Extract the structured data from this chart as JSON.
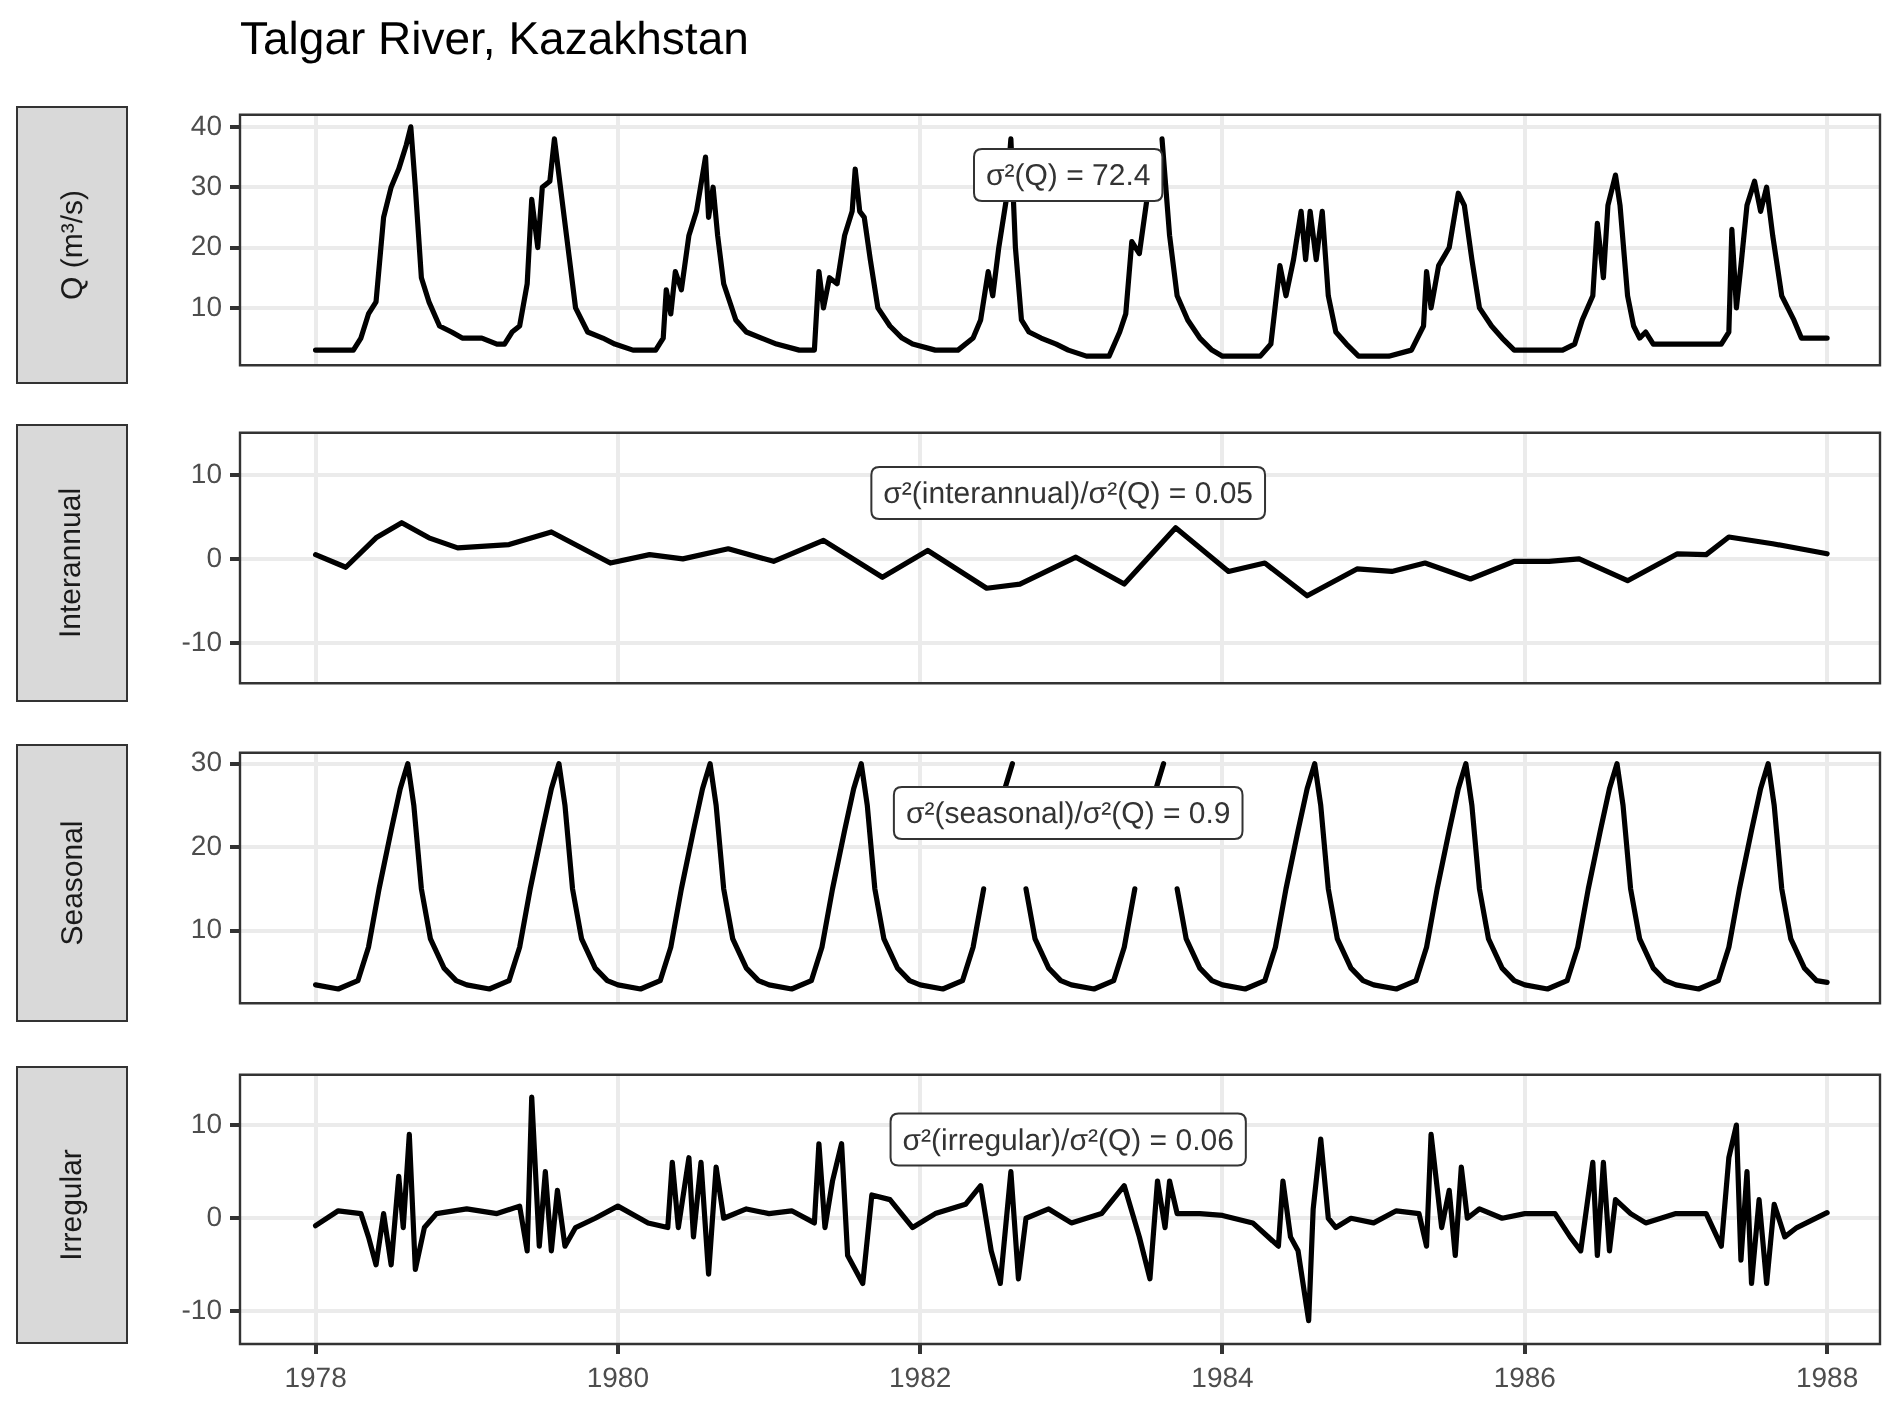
{
  "chart_data": [
    {
      "type": "line",
      "title": "Talgar River, Kazakhstan",
      "ylabel": "Q (m³/s)",
      "color": "#000000",
      "legend": false,
      "grid": true,
      "tick_labels": "y",
      "xlim": [
        1977.5,
        1988.35
      ],
      "xticks": [
        1978,
        1980,
        1982,
        1984,
        1986,
        1988
      ],
      "ylim": [
        0.5,
        42
      ],
      "yticks": [
        10,
        20,
        30,
        40
      ],
      "annotations": [
        "σ²(Q) = 72.4"
      ],
      "x": [
        1978.0,
        1978.25,
        1978.3,
        1978.35,
        1978.4,
        1978.45,
        1978.5,
        1978.55,
        1978.6,
        1978.63,
        1978.66,
        1978.7,
        1978.75,
        1978.82,
        1978.9,
        1978.97,
        1979.1,
        1979.2,
        1979.25,
        1979.3,
        1979.35,
        1979.4,
        1979.43,
        1979.47,
        1979.5,
        1979.55,
        1979.58,
        1979.62,
        1979.67,
        1979.72,
        1979.8,
        1979.9,
        1979.98,
        1980.1,
        1980.25,
        1980.3,
        1980.32,
        1980.35,
        1980.38,
        1980.42,
        1980.47,
        1980.52,
        1980.58,
        1980.6,
        1980.63,
        1980.66,
        1980.7,
        1980.78,
        1980.85,
        1980.95,
        1981.05,
        1981.2,
        1981.3,
        1981.33,
        1981.36,
        1981.4,
        1981.45,
        1981.5,
        1981.55,
        1981.57,
        1981.6,
        1981.63,
        1981.67,
        1981.72,
        1981.8,
        1981.88,
        1981.95,
        1982.1,
        1982.25,
        1982.35,
        1982.4,
        1982.45,
        1982.48,
        1982.52,
        1982.57,
        1982.6,
        1982.63,
        1982.67,
        1982.72,
        1982.8,
        1982.9,
        1982.98,
        1983.1,
        1983.25,
        1983.32,
        1983.36,
        1983.4,
        1983.45,
        1983.5,
        1983.55,
        1983.6,
        1983.65,
        1983.7,
        1983.77,
        1983.85,
        1983.93,
        1984.0,
        1984.25,
        1984.32,
        1984.38,
        1984.42,
        1984.47,
        1984.52,
        1984.55,
        1984.58,
        1984.62,
        1984.66,
        1984.7,
        1984.75,
        1984.82,
        1984.9,
        1984.98,
        1985.1,
        1985.25,
        1985.33,
        1985.35,
        1985.38,
        1985.43,
        1985.5,
        1985.56,
        1985.6,
        1985.65,
        1985.7,
        1985.78,
        1985.85,
        1985.93,
        1986.05,
        1986.25,
        1986.33,
        1986.38,
        1986.45,
        1986.48,
        1986.52,
        1986.55,
        1986.6,
        1986.63,
        1986.68,
        1986.72,
        1986.76,
        1986.8,
        1986.85,
        1986.95,
        1987.1,
        1987.3,
        1987.35,
        1987.37,
        1987.4,
        1987.43,
        1987.47,
        1987.52,
        1987.56,
        1987.6,
        1987.64,
        1987.7,
        1987.78,
        1987.83,
        1987.9,
        1988.0
      ],
      "values": [
        3,
        3,
        5,
        9,
        11,
        25,
        30,
        33,
        37,
        40,
        30,
        15,
        11,
        7,
        6,
        5,
        5,
        4,
        4,
        6,
        7,
        14,
        28,
        20,
        30,
        31,
        38,
        30,
        20,
        10,
        6,
        5,
        4,
        3,
        3,
        5,
        13,
        9,
        16,
        13,
        22,
        26,
        35,
        25,
        30,
        22,
        14,
        8,
        6,
        5,
        4,
        3,
        3,
        16,
        10,
        15,
        14,
        22,
        26,
        33,
        26,
        25,
        18,
        10,
        7,
        5,
        4,
        3,
        3,
        5,
        8,
        16,
        12,
        20,
        28,
        38,
        20,
        8,
        6,
        5,
        4,
        3,
        2,
        2,
        6,
        9,
        21,
        19,
        28,
        null,
        38,
        22,
        12,
        8,
        5,
        3,
        2,
        2,
        4,
        17,
        12,
        18,
        26,
        18,
        26,
        18,
        26,
        12,
        6,
        4,
        2,
        2,
        2,
        3,
        7,
        16,
        10,
        17,
        20,
        29,
        27,
        18,
        10,
        7,
        5,
        3,
        3,
        3,
        4,
        8,
        12,
        24,
        15,
        27,
        32,
        27,
        12,
        7,
        5,
        6,
        4,
        4,
        4,
        4,
        6,
        23,
        10,
        17,
        27,
        31,
        26,
        30,
        22,
        12,
        8,
        5,
        5,
        5
      ]
    },
    {
      "type": "line",
      "ylabel": "Interannual",
      "color": "#000000",
      "legend": false,
      "grid": true,
      "tick_labels": "y",
      "xlim": [
        1977.5,
        1988.35
      ],
      "xticks": [
        1978,
        1980,
        1982,
        1984,
        1986,
        1988
      ],
      "ylim": [
        -14.8,
        15
      ],
      "yticks": [
        -10,
        0,
        10
      ],
      "annotations": [
        "σ²(interannual)/σ²(Q) = 0.05"
      ],
      "x": [
        1978.0,
        1978.2,
        1978.4,
        1978.57,
        1978.75,
        1978.94,
        1979.28,
        1979.56,
        1979.95,
        1980.21,
        1980.43,
        1980.73,
        1981.03,
        1981.36,
        1981.75,
        1982.05,
        1982.44,
        1982.66,
        1983.03,
        1983.35,
        1983.69,
        1984.04,
        1984.28,
        1984.56,
        1984.89,
        1985.12,
        1985.34,
        1985.64,
        1985.93,
        1986.16,
        1986.36,
        1986.68,
        1987.01,
        1987.2,
        1987.35,
        1987.64,
        1988.0
      ],
      "values": [
        0.5,
        -1,
        2.5,
        4.3,
        2.5,
        1.3,
        1.7,
        3.2,
        -0.5,
        0.5,
        0,
        1.2,
        -0.3,
        2.2,
        -2.2,
        1,
        -3.5,
        -3,
        0.2,
        -3,
        3.7,
        -1.5,
        -0.5,
        -4.4,
        -1.2,
        -1.5,
        -0.5,
        -2.4,
        -0.3,
        -0.3,
        0,
        -2.6,
        0.6,
        0.5,
        2.6,
        1.8,
        0.6
      ]
    },
    {
      "type": "line",
      "ylabel": "Seasonal",
      "color": "#000000",
      "legend": false,
      "grid": true,
      "tick_labels": "y",
      "xlim": [
        1977.5,
        1988.35
      ],
      "xticks": [
        1978,
        1980,
        1982,
        1984,
        1986,
        1988
      ],
      "ylim": [
        1.3,
        31.3
      ],
      "yticks": [
        10,
        20,
        30
      ],
      "annotations": [
        "σ²(seasonal)/σ²(Q) = 0.9"
      ],
      "x": [
        1978.0,
        1978.15,
        1978.28,
        1978.35,
        1978.42,
        1978.5,
        1978.56,
        1978.61,
        1978.65,
        1978.7,
        1978.76,
        1978.85,
        1978.93,
        1979.0,
        1979.15,
        1979.28,
        1979.35,
        1979.42,
        1979.5,
        1979.56,
        1979.61,
        1979.65,
        1979.7,
        1979.76,
        1979.85,
        1979.93,
        1980.0,
        1980.15,
        1980.28,
        1980.35,
        1980.42,
        1980.5,
        1980.56,
        1980.61,
        1980.65,
        1980.7,
        1980.76,
        1980.85,
        1980.93,
        1981.0,
        1981.15,
        1981.28,
        1981.35,
        1981.42,
        1981.5,
        1981.56,
        1981.61,
        1981.65,
        1981.7,
        1981.76,
        1981.85,
        1981.93,
        1982.0,
        1982.15,
        1982.28,
        1982.35,
        1982.42,
        1982.5,
        1982.56,
        1982.61,
        1982.65,
        1982.7,
        1982.76,
        1982.85,
        1982.93,
        1983.0,
        1983.15,
        1983.28,
        1983.35,
        1983.42,
        1983.5,
        1983.56,
        1983.61,
        1983.65,
        1983.7,
        1983.76,
        1983.85,
        1983.93,
        1984.0,
        1984.15,
        1984.28,
        1984.35,
        1984.42,
        1984.5,
        1984.56,
        1984.61,
        1984.65,
        1984.7,
        1984.76,
        1984.85,
        1984.93,
        1985.0,
        1985.15,
        1985.28,
        1985.35,
        1985.42,
        1985.5,
        1985.56,
        1985.61,
        1985.65,
        1985.7,
        1985.76,
        1985.85,
        1985.93,
        1986.0,
        1986.15,
        1986.28,
        1986.35,
        1986.42,
        1986.5,
        1986.56,
        1986.61,
        1986.65,
        1986.7,
        1986.76,
        1986.85,
        1986.93,
        1987.0,
        1987.15,
        1987.28,
        1987.35,
        1987.42,
        1987.5,
        1987.56,
        1987.61,
        1987.65,
        1987.7,
        1987.76,
        1987.85,
        1987.93,
        1988.0
      ],
      "values": [
        3.5,
        3,
        4,
        8,
        15,
        22,
        27,
        30,
        25,
        15,
        9,
        5.5,
        4,
        3.5,
        3,
        4,
        8,
        15,
        22,
        27,
        30,
        25,
        15,
        9,
        5.5,
        4,
        3.5,
        3,
        4,
        8,
        15,
        22,
        27,
        30,
        25,
        15,
        9,
        5.5,
        4,
        3.5,
        3,
        4,
        8,
        15,
        22,
        27,
        30,
        25,
        15,
        9,
        5.5,
        4,
        3.5,
        3,
        4,
        8,
        15,
        null,
        27,
        30,
        null,
        15,
        9,
        5.5,
        4,
        3.5,
        3,
        4,
        8,
        15,
        null,
        27,
        30,
        null,
        15,
        9,
        5.5,
        4,
        3.5,
        3,
        4,
        8,
        15,
        22,
        27,
        30,
        25,
        15,
        9,
        5.5,
        4,
        3.5,
        3,
        4,
        8,
        15,
        22,
        27,
        30,
        25,
        15,
        9,
        5.5,
        4,
        3.5,
        3,
        4,
        8,
        15,
        22,
        27,
        30,
        25,
        15,
        9,
        5.5,
        4,
        3.5,
        3,
        4,
        8,
        15,
        22,
        27,
        30,
        25,
        15,
        9,
        5.5,
        4,
        3.8
      ]
    },
    {
      "type": "line",
      "ylabel": "Irregular",
      "color": "#000000",
      "legend": false,
      "grid": true,
      "xlim": [
        1977.5,
        1988.35
      ],
      "xticks": [
        1978,
        1980,
        1982,
        1984,
        1986,
        1988
      ],
      "ylim": [
        -13.5,
        15.4
      ],
      "yticks": [
        -10,
        0,
        10
      ],
      "annotations": [
        "σ²(irregular)/σ²(Q) = 0.06"
      ],
      "x": [
        1978.0,
        1978.15,
        1978.3,
        1978.35,
        1978.4,
        1978.45,
        1978.5,
        1978.55,
        1978.58,
        1978.62,
        1978.66,
        1978.72,
        1978.8,
        1979.0,
        1979.2,
        1979.35,
        1979.4,
        1979.43,
        1979.48,
        1979.52,
        1979.56,
        1979.6,
        1979.65,
        1979.72,
        1979.85,
        1980.0,
        1980.2,
        1980.33,
        1980.36,
        1980.4,
        1980.47,
        1980.5,
        1980.55,
        1980.6,
        1980.65,
        1980.7,
        1980.85,
        1981.0,
        1981.15,
        1981.3,
        1981.33,
        1981.37,
        1981.42,
        1981.48,
        1981.52,
        1981.62,
        1981.68,
        1981.8,
        1981.95,
        1982.1,
        1982.3,
        1982.4,
        1982.47,
        1982.53,
        1982.6,
        1982.65,
        1982.7,
        1982.85,
        1983.0,
        1983.2,
        1983.35,
        1983.45,
        1983.52,
        1983.57,
        1983.62,
        1983.65,
        1983.7,
        1983.85,
        1984.0,
        1984.2,
        1984.37,
        1984.4,
        1984.45,
        1984.5,
        1984.57,
        1984.6,
        1984.65,
        1984.7,
        1984.75,
        1984.85,
        1985.0,
        1985.15,
        1985.3,
        1985.35,
        1985.38,
        1985.45,
        1985.5,
        1985.54,
        1985.58,
        1985.62,
        1985.7,
        1985.85,
        1986.0,
        1986.2,
        1986.3,
        1986.37,
        1986.45,
        1986.48,
        1986.52,
        1986.56,
        1986.6,
        1986.7,
        1986.8,
        1987.0,
        1987.2,
        1987.3,
        1987.35,
        1987.4,
        1987.43,
        1987.47,
        1987.5,
        1987.55,
        1987.6,
        1987.65,
        1987.72,
        1987.8,
        1988.0
      ],
      "values": [
        -0.8,
        0.8,
        0.5,
        -2,
        -5,
        0.5,
        -5,
        4.5,
        -1,
        9,
        -5.5,
        -1,
        0.5,
        1,
        0.5,
        1.3,
        -3.5,
        13,
        -3,
        5,
        -3.5,
        3,
        -3,
        -1,
        0,
        1.3,
        -0.5,
        -1,
        6,
        -1,
        6.5,
        -2,
        6,
        -6,
        5.5,
        0,
        1,
        0.5,
        0.8,
        -0.5,
        8,
        -1,
        4,
        8,
        -4,
        -7,
        2.5,
        2,
        -1,
        0.5,
        1.5,
        3.5,
        -3.5,
        -7,
        5,
        -6.5,
        0,
        1,
        -0.5,
        0.5,
        3.5,
        -2,
        -6.5,
        4,
        -1,
        4,
        0.5,
        0.5,
        0.3,
        -0.5,
        -3,
        4,
        -2,
        -3.5,
        -11,
        1,
        8.5,
        0,
        -1,
        0,
        -0.5,
        0.8,
        0.5,
        -3,
        9,
        -1,
        3,
        -4,
        5.5,
        0,
        1,
        0,
        0.5,
        0.5,
        -2,
        -3.5,
        6,
        -4,
        6,
        -3.5,
        2,
        0.5,
        -0.5,
        0.5,
        0.5,
        -3,
        6.5,
        10,
        -4.5,
        5,
        -7,
        2,
        -7,
        1.5,
        -2,
        -1,
        0.6
      ]
    }
  ]
}
